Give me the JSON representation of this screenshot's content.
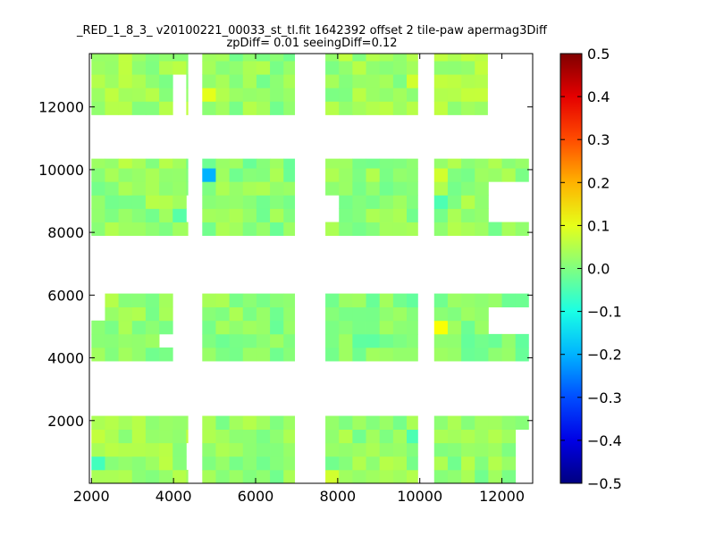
{
  "chart_data": {
    "type": "heatmap",
    "title": "_RED_1_8_3_ v20100221_00033_st_tl.fit 1642392 offset 2 tile-paw apermag3Diff",
    "subtitle": "zpDiff= 0.01 seeingDiff=0.12",
    "xlabel": "",
    "ylabel": "",
    "xlim": [
      1950,
      12750
    ],
    "ylim": [
      0,
      13700
    ],
    "xticks": [
      2000,
      4000,
      6000,
      8000,
      10000,
      12000
    ],
    "yticks": [
      2000,
      4000,
      6000,
      8000,
      10000,
      12000
    ],
    "colorbar": {
      "range": [
        -0.5,
        0.5
      ],
      "ticks": [
        "0.5",
        "0.4",
        "0.3",
        "0.2",
        "0.1",
        "0.0",
        "−0.1",
        "−0.2",
        "−0.3",
        "−0.4",
        "−0.5"
      ],
      "colormap": "jet"
    },
    "grid": false,
    "cell_size": [
      330,
      430
    ],
    "tiles": [
      {
        "x": [
          2000,
          4350
        ],
        "y": [
          0,
          2150
        ],
        "base": 0.03
      },
      {
        "x": [
          4700,
          6950
        ],
        "y": [
          0,
          2150
        ],
        "base": 0.02
      },
      {
        "x": [
          7700,
          9950
        ],
        "y": [
          0,
          2150
        ],
        "base": 0.02
      },
      {
        "x": [
          10350,
          12650
        ],
        "y": [
          0,
          2150
        ],
        "base": 0.02
      },
      {
        "x": [
          2000,
          4000
        ],
        "y": [
          3900,
          6050
        ],
        "base": 0.02
      },
      {
        "x": [
          4700,
          6950
        ],
        "y": [
          3900,
          6050
        ],
        "base": 0.01
      },
      {
        "x": [
          7700,
          9950
        ],
        "y": [
          3900,
          6050
        ],
        "base": 0.0
      },
      {
        "x": [
          10350,
          12650
        ],
        "y": [
          3900,
          6050
        ],
        "base": 0.0
      },
      {
        "x": [
          2000,
          4350
        ],
        "y": [
          7900,
          10350
        ],
        "base": 0.02
      },
      {
        "x": [
          4700,
          6950
        ],
        "y": [
          7900,
          10350
        ],
        "base": 0.01
      },
      {
        "x": [
          7700,
          9950
        ],
        "y": [
          7900,
          10350
        ],
        "base": 0.02
      },
      {
        "x": [
          10350,
          12650
        ],
        "y": [
          7900,
          10350
        ],
        "base": 0.02
      },
      {
        "x": [
          2000,
          4350
        ],
        "y": [
          11750,
          13700
        ],
        "base": 0.03
      },
      {
        "x": [
          4700,
          6950
        ],
        "y": [
          11750,
          13700
        ],
        "base": 0.02
      },
      {
        "x": [
          7700,
          9950
        ],
        "y": [
          11750,
          13700
        ],
        "base": 0.03
      },
      {
        "x": [
          10350,
          11650
        ],
        "y": [
          11750,
          13700
        ],
        "base": 0.04
      }
    ],
    "holes": [
      {
        "x": [
          4000,
          4350
        ],
        "y": [
          3900,
          6050
        ]
      },
      {
        "x": [
          3700,
          4000
        ],
        "y": [
          4300,
          4700
        ]
      },
      {
        "x": [
          4000,
          4350
        ],
        "y": [
          11750,
          12900
        ]
      },
      {
        "x": [
          4350,
          4700
        ],
        "y": [
          300,
          1250
        ]
      },
      {
        "x": [
          7700,
          8000
        ],
        "y": [
          8300,
          9100
        ]
      },
      {
        "x": [
          11650,
          12650
        ],
        "y": [
          4700,
          5700
        ]
      },
      {
        "x": [
          11650,
          12650
        ],
        "y": [
          8300,
          9500
        ]
      },
      {
        "x": [
          4350,
          4700
        ],
        "y": [
          8300,
          9100
        ]
      },
      {
        "x": [
          2000,
          2350
        ],
        "y": [
          5150,
          6050
        ]
      },
      {
        "x": [
          12320,
          12650
        ],
        "y": [
          0,
          1700
        ]
      }
    ],
    "features": [
      {
        "x": 4800,
        "y": 9730,
        "value": -0.2
      },
      {
        "x": 4820,
        "y": 12400,
        "value": 0.1
      },
      {
        "x": 10520,
        "y": 4970,
        "value": 0.12
      },
      {
        "x": 10520,
        "y": 9730,
        "value": 0.08
      },
      {
        "x": 10520,
        "y": 8860,
        "value": -0.05
      },
      {
        "x": 9810,
        "y": 1540,
        "value": -0.05
      },
      {
        "x": 7860,
        "y": 200,
        "value": 0.08
      },
      {
        "x": 9810,
        "y": 12940,
        "value": 0.08
      },
      {
        "x": 2220,
        "y": 660,
        "value": -0.06
      },
      {
        "x": 2820,
        "y": 10180,
        "value": 0.06
      },
      {
        "x": 4200,
        "y": 8600,
        "value": -0.04
      },
      {
        "x": 12370,
        "y": 220,
        "value": -0.05
      },
      {
        "x": 11700,
        "y": 460,
        "value": 0.05
      }
    ]
  }
}
